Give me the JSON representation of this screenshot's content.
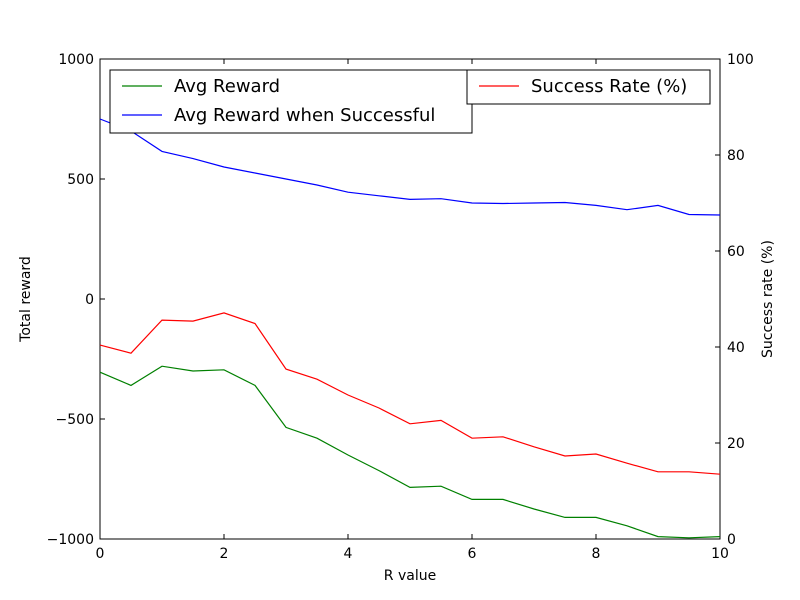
{
  "chart_data": {
    "type": "line",
    "xlabel": "R value",
    "ylabel_left": "Total reward",
    "ylabel_right": "Success rate (%)",
    "xlim": [
      0,
      10
    ],
    "ylim_left": [
      -1000,
      1000
    ],
    "ylim_right": [
      0,
      100
    ],
    "x_ticks": [
      0,
      2,
      4,
      6,
      8,
      10
    ],
    "y_left_ticks": [
      -1000,
      -500,
      0,
      500,
      1000
    ],
    "y_right_ticks": [
      0,
      20,
      40,
      60,
      80,
      100
    ],
    "grid": false,
    "x": [
      0,
      0.5,
      1,
      1.5,
      2,
      2.5,
      3,
      3.5,
      4,
      4.5,
      5,
      5.5,
      6,
      6.5,
      7,
      7.5,
      8,
      8.5,
      9,
      9.5,
      10
    ],
    "series": [
      {
        "name": "Avg Reward",
        "axis": "left",
        "color": "#008000",
        "values": [
          -305,
          -360,
          -280,
          -300,
          -295,
          -360,
          -535,
          -580,
          -650,
          -715,
          -785,
          -780,
          -835,
          -835,
          -875,
          -910,
          -910,
          -945,
          -990,
          -995,
          -990
        ]
      },
      {
        "name": "Avg Reward when Successful",
        "axis": "left",
        "color": "#0000ff",
        "values": [
          750,
          700,
          615,
          585,
          550,
          525,
          500,
          475,
          445,
          430,
          415,
          418,
          400,
          398,
          400,
          402,
          390,
          372,
          390,
          352,
          350
        ]
      },
      {
        "name": "Success Rate (%)",
        "axis": "right",
        "color": "#ff0000",
        "values": [
          40.4,
          38.7,
          45.6,
          45.4,
          47.1,
          44.9,
          35.4,
          33.3,
          30.0,
          27.3,
          24.0,
          24.7,
          21.0,
          21.3,
          19.2,
          17.3,
          17.7,
          15.8,
          14.0,
          14.0,
          13.5
        ]
      }
    ],
    "legends": [
      {
        "placement": "top-left",
        "entries": [
          "Avg Reward",
          "Avg Reward when Successful"
        ]
      },
      {
        "placement": "top-right",
        "entries": [
          "Success Rate (%)"
        ]
      }
    ]
  }
}
